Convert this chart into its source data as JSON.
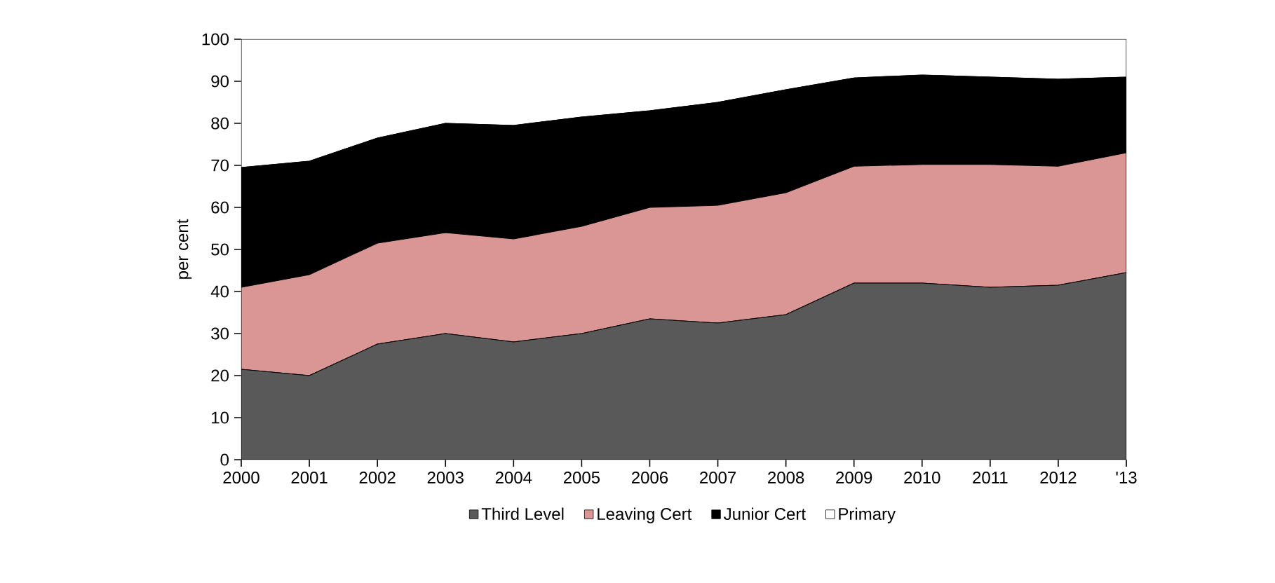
{
  "chart_data": {
    "type": "area",
    "stacked": true,
    "ylabel": "per cent",
    "categories": [
      "2000",
      "2001",
      "2002",
      "2003",
      "2004",
      "2005",
      "2006",
      "2007",
      "2008",
      "2009",
      "2010",
      "2011",
      "2012",
      "'13"
    ],
    "series": [
      {
        "name": "Third Level",
        "color": "#595959",
        "values": [
          21.5,
          20,
          27.5,
          30,
          28,
          30,
          33.5,
          32.5,
          34.5,
          42,
          42,
          41,
          41.5,
          44.5
        ]
      },
      {
        "name": "Leaving Cert",
        "color": "#d99694",
        "values": [
          19.5,
          24,
          24,
          24,
          24.5,
          25.5,
          26.5,
          28,
          29,
          27.8,
          28.2,
          29.2,
          28.3,
          28.5
        ]
      },
      {
        "name": "Junior Cert",
        "color": "#000000",
        "values": [
          28.5,
          27,
          25,
          26,
          27,
          26,
          23,
          24.5,
          24.5,
          21,
          21.3,
          20.8,
          20.7,
          18
        ]
      },
      {
        "name": "Primary",
        "color": "#ffffff",
        "values": [
          30.5,
          29,
          23.5,
          20,
          20.5,
          18.5,
          17,
          15,
          12,
          9.2,
          8.5,
          9,
          9.5,
          9
        ]
      }
    ],
    "ylim": [
      0,
      100
    ],
    "yticks": [
      0,
      10,
      20,
      30,
      40,
      50,
      60,
      70,
      80,
      90,
      100
    ],
    "grid": false,
    "legend": "bottom"
  }
}
